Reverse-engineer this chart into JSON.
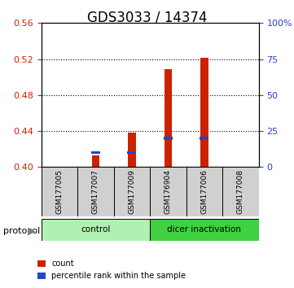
{
  "title": "GDS3033 / 14374",
  "samples": [
    "GSM177005",
    "GSM177007",
    "GSM177009",
    "GSM176904",
    "GSM177006",
    "GSM177008"
  ],
  "red_values": [
    0.4,
    0.413,
    0.438,
    0.509,
    0.521,
    0.4
  ],
  "blue_values": [
    0.4,
    0.416,
    0.416,
    0.432,
    0.432,
    0.4
  ],
  "ylim_left": [
    0.4,
    0.56
  ],
  "ylim_right": [
    0,
    100
  ],
  "yticks_left": [
    0.4,
    0.44,
    0.48,
    0.52,
    0.56
  ],
  "yticks_right": [
    0,
    25,
    50,
    75,
    100
  ],
  "ytick_labels_right": [
    "0",
    "25",
    "50",
    "75",
    "100%"
  ],
  "groups": [
    {
      "label": "control",
      "start": 0,
      "end": 3,
      "color": "#b0f0b0"
    },
    {
      "label": "dicer inactivation",
      "start": 3,
      "end": 6,
      "color": "#40d040"
    }
  ],
  "protocol_label": "protocol",
  "legend_items": [
    {
      "color": "#cc2200",
      "label": "count"
    },
    {
      "color": "#2244cc",
      "label": "percentile rank within the sample"
    }
  ],
  "bar_width": 0.35,
  "title_fontsize": 12,
  "axis_color_left": "#cc2200",
  "axis_color_right": "#2244cc",
  "bar_color_red": "#cc2200",
  "bar_color_blue": "#2244cc",
  "base_value": 0.4,
  "grid_color": "#000000",
  "background_plot": "#ffffff",
  "background_label": "#d0d0d0"
}
